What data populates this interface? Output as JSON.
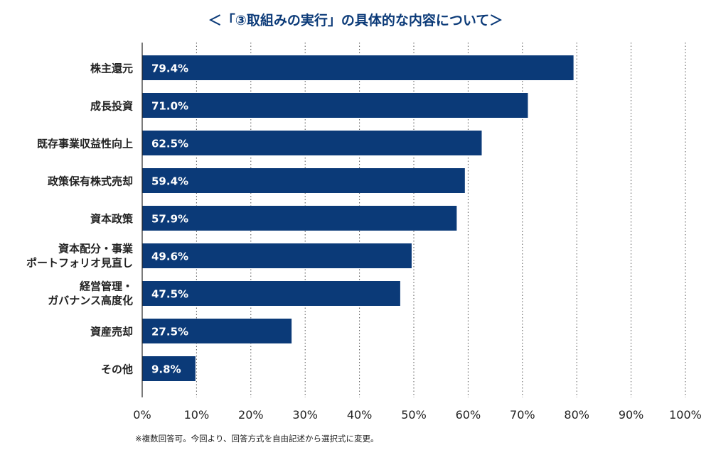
{
  "title": "＜「③取組みの実行」の具体的な内容について＞",
  "note": "※複数回答可。今回より、回答方式を自由記述から選択式に変更。",
  "chart_data": {
    "type": "bar",
    "orientation": "horizontal",
    "categories": [
      [
        "株主還元"
      ],
      [
        "成長投資"
      ],
      [
        "既存事業収益性向上"
      ],
      [
        "政策保有株式売却"
      ],
      [
        "資本政策"
      ],
      [
        "資本配分・事業",
        "ポートフォリオ見直し"
      ],
      [
        "経営管理・",
        "ガバナンス高度化"
      ],
      [
        "資産売却"
      ],
      [
        "その他"
      ]
    ],
    "values": [
      79.4,
      71.0,
      62.5,
      59.4,
      57.9,
      49.6,
      47.5,
      27.5,
      9.8
    ],
    "value_labels": [
      "79.4%",
      "71.0%",
      "62.5%",
      "59.4%",
      "57.9%",
      "49.6%",
      "47.5%",
      "27.5%",
      "9.8%"
    ],
    "xlim": [
      0,
      100
    ],
    "xticks": [
      0,
      10,
      20,
      30,
      40,
      50,
      60,
      70,
      80,
      90,
      100
    ],
    "xtick_labels": [
      "0%",
      "10%",
      "20%",
      "30%",
      "40%",
      "50%",
      "60%",
      "70%",
      "80%",
      "90%",
      "100%"
    ],
    "grid": "vertical-dotted",
    "bar_color": "#0b3a78",
    "title_color": "#0b3a78"
  }
}
